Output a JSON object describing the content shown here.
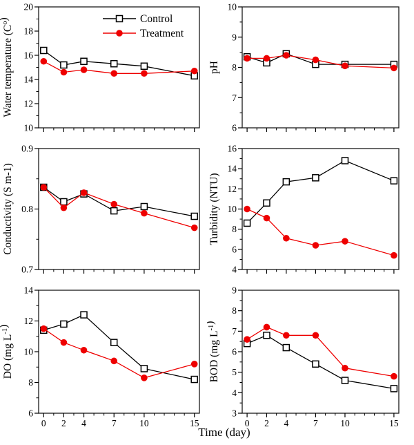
{
  "figure": {
    "x_label": "Time (day)",
    "x": [
      0,
      2,
      4,
      7,
      10,
      15
    ],
    "xlim": [
      -0.5,
      15.5
    ],
    "x_major_ticks": [
      0,
      2,
      4,
      7,
      10,
      15
    ],
    "x_major_labels": [
      "0",
      "2",
      "4",
      "7",
      "10",
      "15"
    ],
    "x_minor_ticks": [
      1,
      3,
      5,
      6,
      8,
      9,
      11,
      12,
      13,
      14
    ],
    "legend": {
      "items": [
        {
          "label": "Control",
          "marker": "open-square"
        },
        {
          "label": "Treatment",
          "marker": "filled-circle"
        }
      ]
    },
    "colors": {
      "control_line": "#000000",
      "control_marker_fill": "#ffffff",
      "treatment": "#ee0000",
      "frame": "#1a1a1a"
    }
  },
  "chart_data": [
    {
      "type": "line",
      "id": "water-temperature",
      "ylabel": "Water temperature (C°)",
      "ylabel_parts": [
        {
          "t": "Water temperature (C"
        },
        {
          "t": "o",
          "sup": true
        },
        {
          "t": ")"
        }
      ],
      "ylim": [
        10,
        20
      ],
      "y_major_ticks": [
        10,
        12,
        14,
        16,
        18,
        20
      ],
      "y_major_labels": [
        "10",
        "12",
        "14",
        "16",
        "18",
        "20"
      ],
      "y_minor_ticks": [
        11,
        13,
        15,
        17,
        19
      ],
      "show_legend": true,
      "show_x_labels": false,
      "series": [
        {
          "name": "Control",
          "values": [
            16.4,
            15.2,
            15.5,
            15.3,
            15.1,
            14.3
          ]
        },
        {
          "name": "Treatment",
          "values": [
            15.5,
            14.6,
            14.8,
            14.5,
            14.5,
            14.7
          ]
        }
      ]
    },
    {
      "type": "line",
      "id": "ph",
      "ylabel": "pH",
      "ylabel_parts": [
        {
          "t": "pH"
        }
      ],
      "ylim": [
        6,
        10
      ],
      "y_major_ticks": [
        6,
        7,
        8,
        9,
        10
      ],
      "y_major_labels": [
        "6",
        "7",
        "8",
        "9",
        "10"
      ],
      "y_minor_ticks": [
        6.5,
        7.5,
        8.5,
        9.5
      ],
      "show_legend": false,
      "show_x_labels": false,
      "series": [
        {
          "name": "Control",
          "values": [
            8.35,
            8.15,
            8.45,
            8.1,
            8.1,
            8.1
          ]
        },
        {
          "name": "Treatment",
          "values": [
            8.3,
            8.3,
            8.4,
            8.25,
            8.05,
            7.98
          ]
        }
      ]
    },
    {
      "type": "line",
      "id": "conductivity",
      "ylabel": "Conductivity (S m-1)",
      "ylabel_parts": [
        {
          "t": "Conductivity (S m-1)"
        }
      ],
      "ylim": [
        0.7,
        0.9
      ],
      "y_major_ticks": [
        0.7,
        0.8,
        0.9
      ],
      "y_major_labels": [
        "0.7",
        "0.8",
        "0.9"
      ],
      "y_minor_ticks": [
        0.75,
        0.85
      ],
      "show_legend": false,
      "show_x_labels": false,
      "series": [
        {
          "name": "Control",
          "values": [
            0.836,
            0.812,
            0.825,
            0.797,
            0.804,
            0.788
          ]
        },
        {
          "name": "Treatment",
          "values": [
            0.836,
            0.802,
            0.827,
            0.808,
            0.793,
            0.769
          ]
        }
      ]
    },
    {
      "type": "line",
      "id": "turbidity",
      "ylabel": "Turbidity (NTU)",
      "ylabel_parts": [
        {
          "t": "Turbidity (NTU)"
        }
      ],
      "ylim": [
        4,
        16
      ],
      "y_major_ticks": [
        4,
        6,
        8,
        10,
        12,
        14,
        16
      ],
      "y_major_labels": [
        "4",
        "6",
        "8",
        "10",
        "12",
        "14",
        "16"
      ],
      "y_minor_ticks": [
        5,
        7,
        9,
        11,
        13,
        15
      ],
      "show_legend": false,
      "show_x_labels": false,
      "series": [
        {
          "name": "Control",
          "values": [
            8.6,
            10.6,
            12.7,
            13.1,
            14.8,
            12.8
          ]
        },
        {
          "name": "Treatment",
          "values": [
            10.0,
            9.1,
            7.1,
            6.4,
            6.8,
            5.4
          ]
        }
      ]
    },
    {
      "type": "line",
      "id": "do",
      "ylabel": "DO (mg L-1)",
      "ylabel_parts": [
        {
          "t": "DO (mg L"
        },
        {
          "t": "-1",
          "sup": true
        },
        {
          "t": ")"
        }
      ],
      "ylim": [
        6,
        14
      ],
      "y_major_ticks": [
        6,
        8,
        10,
        12,
        14
      ],
      "y_major_labels": [
        "6",
        "8",
        "10",
        "12",
        "14"
      ],
      "y_minor_ticks": [
        7,
        9,
        11,
        13
      ],
      "show_legend": false,
      "show_x_labels": true,
      "series": [
        {
          "name": "Control",
          "values": [
            11.4,
            11.8,
            12.4,
            10.6,
            8.9,
            8.2
          ]
        },
        {
          "name": "Treatment",
          "values": [
            11.5,
            10.6,
            10.1,
            9.4,
            8.3,
            9.2
          ]
        }
      ]
    },
    {
      "type": "line",
      "id": "bod",
      "ylabel": "BOD (mg L-1)",
      "ylabel_parts": [
        {
          "t": "BOD (mg L"
        },
        {
          "t": "-1",
          "sup": true
        },
        {
          "t": ")"
        }
      ],
      "ylim": [
        3,
        9
      ],
      "y_major_ticks": [
        3,
        4,
        5,
        6,
        7,
        8,
        9
      ],
      "y_major_labels": [
        "3",
        "4",
        "5",
        "6",
        "7",
        "8",
        "9"
      ],
      "y_minor_ticks": [
        3.5,
        4.5,
        5.5,
        6.5,
        7.5,
        8.5
      ],
      "show_legend": false,
      "show_x_labels": true,
      "series": [
        {
          "name": "Control",
          "values": [
            6.4,
            6.8,
            6.2,
            5.4,
            4.6,
            4.2
          ]
        },
        {
          "name": "Treatment",
          "values": [
            6.6,
            7.2,
            6.8,
            6.8,
            5.2,
            4.8
          ]
        }
      ]
    }
  ]
}
